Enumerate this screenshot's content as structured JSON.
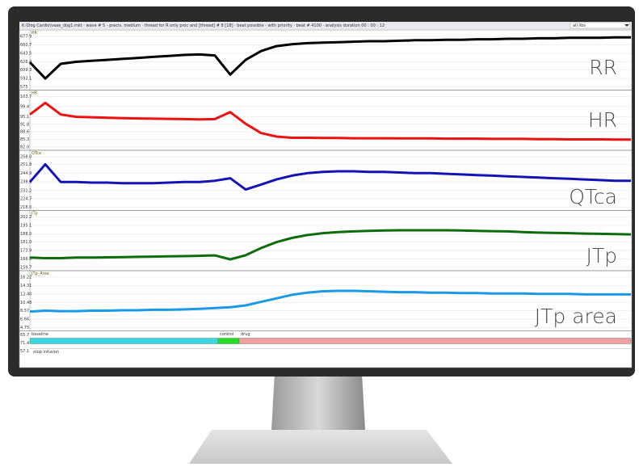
{
  "screen": {
    "title": "K:\\Dog Cardio\\vaae_dog1.mkt  ·  wave # 5 - precis. medium  ·  thread for R only proc and [thread] # 8 [18]  ·  beat possible - with priority  ·  beat # 4100  ·  analysis duration 00 : 00 : 12",
    "dropdown": "all libs"
  },
  "panels": [
    {
      "label": "RR",
      "big_label": "RR",
      "color": "#000000",
      "ylim": [
        575,
        677.9
      ],
      "yticks": [
        575,
        592.1,
        609.3,
        626.4,
        643.5,
        660.7,
        677.9
      ],
      "values": [
        625,
        592,
        622,
        626,
        628,
        630,
        632,
        634,
        636,
        638,
        640,
        641,
        639,
        600,
        630,
        648,
        658,
        662,
        664,
        665,
        666,
        667,
        668,
        668,
        669,
        670,
        670,
        671,
        671,
        672,
        672,
        673,
        673,
        674,
        674,
        675,
        675,
        675,
        676,
        676
      ]
    },
    {
      "label": "HR",
      "big_label": "HR",
      "color": "#ee1111",
      "ylim": [
        82,
        103.7
      ],
      "yticks": [
        {
          "value": 82,
          "label": "82.0"
        },
        85.3,
        88.6,
        91.8,
        95.1,
        99.4,
        103.7
      ],
      "values": [
        96,
        101,
        96,
        95,
        94.8,
        94.6,
        94.4,
        94.3,
        94.2,
        94.1,
        94,
        93.9,
        94,
        97,
        92,
        88,
        86.5,
        86,
        86,
        85.9,
        85.9,
        85.8,
        85.8,
        85.8,
        85.7,
        85.7,
        85.7,
        85.6,
        85.6,
        85.6,
        85.5,
        85.5,
        85.5,
        85.4,
        85.4,
        85.3,
        85.3,
        85.3,
        85.2,
        85.2
      ]
    },
    {
      "label": "QTca",
      "big_label": "QTca",
      "color": "#1414b4",
      "ylim": [
        218,
        258
      ],
      "yticks": [
        {
          "value": 218,
          "label": "218.0"
        },
        224.7,
        231.2,
        238.1,
        244.9,
        251.8,
        {
          "value": 258,
          "label": "258.0"
        }
      ],
      "values": [
        238,
        252,
        238,
        238,
        237.5,
        237.5,
        237,
        237,
        237,
        237.5,
        238,
        238,
        239,
        241,
        232,
        236,
        240,
        243,
        245,
        246,
        246.5,
        246.5,
        246,
        246,
        245.5,
        245,
        245,
        244.5,
        244,
        243.5,
        243,
        242.5,
        242,
        241.5,
        241,
        240.5,
        240,
        239.5,
        239,
        239
      ]
    },
    {
      "label": "JTp",
      "big_label": "JTp",
      "color": "#0e6b0e",
      "ylim": [
        159.7,
        202.2
      ],
      "yticks": [
        159.7,
        166.8,
        173.9,
        {
          "value": 181,
          "label": "181.0"
        },
        {
          "value": 188,
          "label": "188.0"
        },
        195.1,
        202.2
      ],
      "values": [
        168,
        167.5,
        167.5,
        168,
        168,
        168.2,
        168.4,
        168.6,
        168.8,
        169,
        169.2,
        169.5,
        169.8,
        166.5,
        170,
        176,
        181,
        184.5,
        187,
        188.5,
        189.5,
        190,
        190.5,
        190.8,
        191,
        191,
        191,
        191,
        190.8,
        190.5,
        190.2,
        190,
        189.5,
        189,
        188.8,
        188.5,
        188.2,
        188,
        187.8,
        187.5
      ]
    },
    {
      "label": "JTp_Area",
      "big_label": "JTp area",
      "color": "#1a9ae6",
      "ylim": [
        4.75,
        16.22
      ],
      "yticks": [
        4.75,
        6.66,
        8.57,
        10.48,
        {
          "value": 12.4,
          "label": "12.40"
        },
        14.31,
        16.22
      ],
      "values": [
        8.4,
        8.6,
        8.5,
        8.5,
        8.6,
        8.6,
        8.7,
        8.7,
        8.8,
        8.8,
        8.9,
        9,
        9.2,
        9.4,
        9.8,
        10.6,
        11.4,
        12.2,
        12.7,
        13,
        13.1,
        13.1,
        13,
        12.9,
        12.8,
        12.8,
        12.7,
        12.7,
        12.6,
        12.6,
        12.5,
        12.5,
        12.5,
        12.4,
        12.4,
        12.4,
        12.3,
        12.3,
        12.3,
        12.3
      ]
    }
  ],
  "bottom": {
    "labels": [
      "baseline",
      "control",
      "drug"
    ],
    "ticks": [
      "65.7",
      "71.4",
      "57.1"
    ],
    "note": "stop infusion"
  }
}
